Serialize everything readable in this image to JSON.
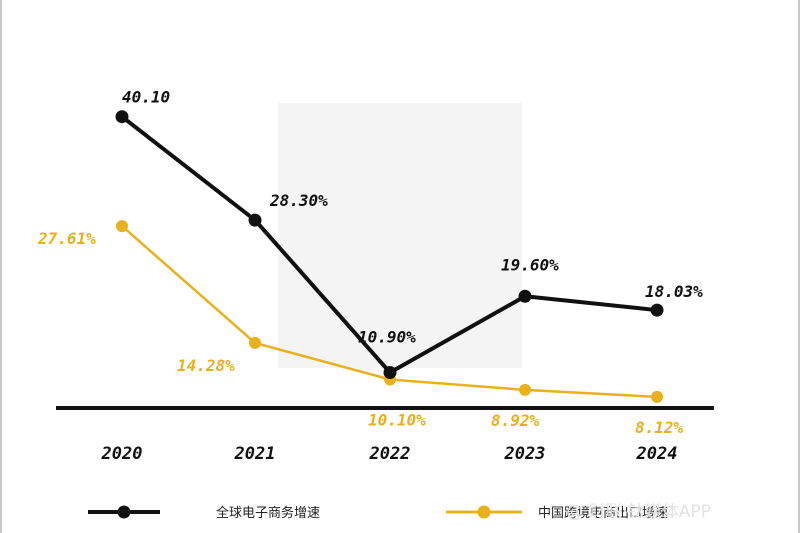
{
  "chart_data": {
    "type": "line",
    "categories": [
      "2020",
      "2021",
      "2022",
      "2023",
      "2024"
    ],
    "series": [
      {
        "name": "全球电子商务增速",
        "color": "#111111",
        "values": [
          40.1,
          28.3,
          10.9,
          19.6,
          18.03
        ],
        "labels": [
          "40.10",
          "28.30%",
          "10.90%",
          "19.60%",
          "18.03%"
        ]
      },
      {
        "name": "中国跨境电商出口增速",
        "color": "#e8b01b",
        "values": [
          27.61,
          14.28,
          10.1,
          8.92,
          8.12
        ],
        "labels": [
          "27.61%",
          "14.28%",
          "10.10%",
          "8.92%",
          "8.12%"
        ]
      }
    ],
    "ylim": [
      0,
      50
    ],
    "grid": false,
    "legend_position": "bottom"
  },
  "watermark": {
    "text": "@ 财联·钛媒体APP"
  }
}
